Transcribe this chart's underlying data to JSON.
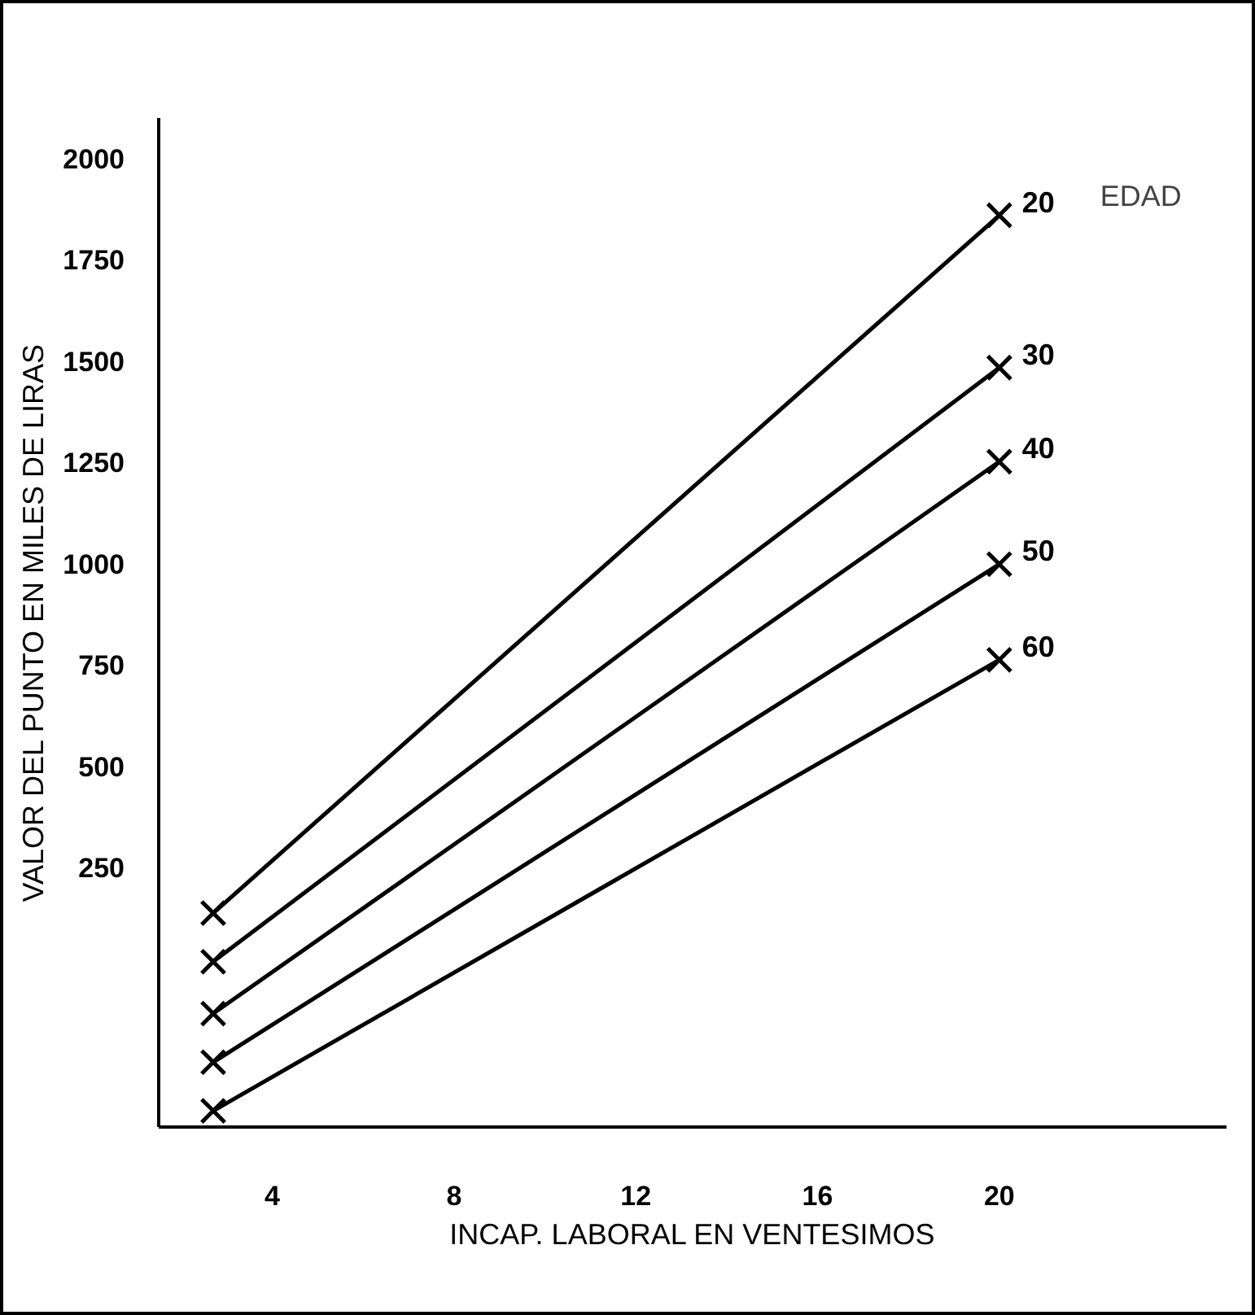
{
  "chart_data": {
    "type": "line",
    "xlabel": "INCAP. LABORAL EN VENTESIMOS",
    "ylabel": "VALOR DEL PUNTO EN MILES DE LIRAS",
    "legend_title": "EDAD",
    "x": [
      2.7,
      20
    ],
    "series": [
      {
        "name": "20",
        "color": "#000000",
        "values": [
          138,
          1860
        ]
      },
      {
        "name": "30",
        "color": "#000000",
        "values": [
          18,
          1484
        ]
      },
      {
        "name": "40",
        "color": "#000000",
        "values": [
          -110,
          1252
        ]
      },
      {
        "name": "50",
        "color": "#000000",
        "values": [
          -230,
          999
        ]
      },
      {
        "name": "60",
        "color": "#000000",
        "values": [
          -350,
          763
        ]
      }
    ],
    "xlim": [
      1.5,
      25
    ],
    "ylim": [
      -390,
      2100
    ],
    "xticks": [
      4,
      8,
      12,
      16,
      20
    ],
    "yticks": [
      250,
      500,
      750,
      1000,
      1250,
      1500,
      1750,
      2000
    ],
    "marker": "cross",
    "line_style": "solid",
    "grid": false,
    "legend": false
  }
}
